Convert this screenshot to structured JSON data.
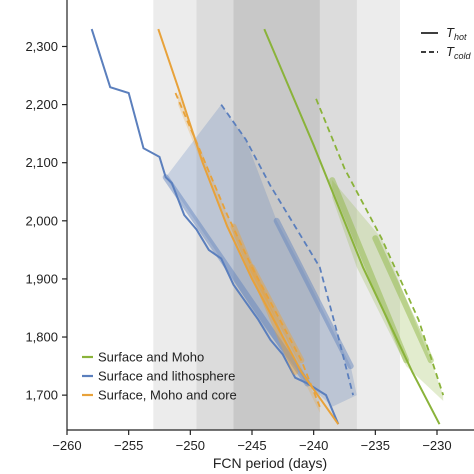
{
  "chart_data": {
    "type": "line",
    "title": "",
    "xlabel": "FCN period (days)",
    "ylabel": "",
    "xlim": [
      -260,
      -227
    ],
    "ylim": [
      1640,
      2380
    ],
    "x_ticks": [
      -260,
      -255,
      -250,
      -245,
      -240,
      -235,
      -230
    ],
    "x_tick_labels": [
      "−260",
      "−255",
      "−250",
      "−245",
      "−240",
      "−235",
      "−230"
    ],
    "y_ticks": [
      1700,
      1800,
      1900,
      2000,
      2100,
      2200,
      2300
    ],
    "y_tick_labels": [
      "1,700",
      "1,800",
      "1,900",
      "2,000",
      "2,100",
      "2,200",
      "2,300"
    ],
    "grid": false,
    "background_bands": [
      {
        "x": [
          -253,
          -233
        ],
        "color": "#ececec"
      },
      {
        "x": [
          -249.5,
          -236.5
        ],
        "color": "#dcdcdc"
      },
      {
        "x": [
          -246.5,
          -239.5
        ],
        "color": "#c8c8c8"
      }
    ],
    "line_style_key": {
      "solid": {
        "label": "T",
        "sub": "hot"
      },
      "dashed": {
        "label": "T",
        "sub": "cold"
      }
    },
    "legend_position": "bottom-left",
    "series": [
      {
        "name": "Surface and Moho",
        "color": "#8ab33a",
        "hot": [
          [
            -244,
            2330
          ],
          [
            -240,
            2130
          ],
          [
            -236,
            1920
          ],
          [
            -232,
            1740
          ],
          [
            -229.8,
            1650
          ]
        ],
        "hot_highlight": [
          [
            -238.5,
            2070
          ],
          [
            -232.5,
            1760
          ]
        ],
        "cold": [
          [
            -239.8,
            2210
          ],
          [
            -237.5,
            2090
          ],
          [
            -234.5,
            1970
          ],
          [
            -231.5,
            1830
          ],
          [
            -229.5,
            1700
          ]
        ],
        "cold_highlight": [
          [
            -235,
            1970
          ],
          [
            -230.5,
            1760
          ]
        ],
        "band_upper": [
          [
            -238.5,
            2070
          ],
          [
            -234.5,
            1970
          ],
          [
            -230.5,
            1760
          ],
          [
            -229.5,
            1700
          ]
        ],
        "band_lower": [
          [
            -238.5,
            2040
          ],
          [
            -236.5,
            1920
          ],
          [
            -232.5,
            1750
          ],
          [
            -229.5,
            1690
          ]
        ]
      },
      {
        "name": "Surface and lithosphere",
        "color": "#5b7fbd",
        "hot": [
          [
            -258,
            2330
          ],
          [
            -256.5,
            2230
          ],
          [
            -255,
            2220
          ],
          [
            -253.8,
            2125
          ],
          [
            -252.5,
            2110
          ],
          [
            -252,
            2075
          ],
          [
            -251.5,
            2065
          ],
          [
            -250.5,
            2010
          ],
          [
            -249.5,
            1985
          ],
          [
            -248.5,
            1950
          ],
          [
            -247.5,
            1935
          ],
          [
            -246.5,
            1890
          ],
          [
            -245.5,
            1860
          ],
          [
            -244.5,
            1830
          ],
          [
            -243.5,
            1795
          ],
          [
            -242.5,
            1770
          ],
          [
            -241.5,
            1730
          ],
          [
            -240.5,
            1720
          ],
          [
            -239,
            1700
          ],
          [
            -238,
            1650
          ]
        ],
        "hot_highlight": [
          [
            -252,
            2075
          ],
          [
            -240.5,
            1720
          ]
        ],
        "cold": [
          [
            -247.5,
            2200
          ],
          [
            -245.5,
            2140
          ],
          [
            -243.5,
            2060
          ],
          [
            -241.5,
            1990
          ],
          [
            -239.5,
            1920
          ],
          [
            -238,
            1800
          ],
          [
            -236.8,
            1700
          ]
        ],
        "cold_highlight": [
          [
            -243,
            2000
          ],
          [
            -237,
            1750
          ]
        ],
        "band_upper": [
          [
            -247.5,
            2200
          ],
          [
            -245.5,
            2140
          ],
          [
            -243,
            2000
          ],
          [
            -241,
            1920
          ],
          [
            -237,
            1750
          ],
          [
            -236.5,
            1700
          ]
        ],
        "band_lower": [
          [
            -252,
            2075
          ],
          [
            -248,
            1950
          ],
          [
            -244.5,
            1830
          ],
          [
            -240.5,
            1720
          ],
          [
            -238.5,
            1680
          ]
        ]
      },
      {
        "name": "Surface, Moho and core",
        "color": "#e8a23a",
        "hot": [
          [
            -252.6,
            2330
          ],
          [
            -251,
            2230
          ],
          [
            -249,
            2100
          ],
          [
            -247,
            1990
          ],
          [
            -245,
            1900
          ],
          [
            -243,
            1820
          ],
          [
            -241,
            1740
          ],
          [
            -238,
            1650
          ]
        ],
        "hot_highlight": [
          [
            -246.5,
            1990
          ],
          [
            -241.5,
            1740
          ]
        ],
        "cold": [
          [
            -251.2,
            2220
          ],
          [
            -249,
            2110
          ],
          [
            -247,
            2010
          ],
          [
            -245,
            1920
          ],
          [
            -243,
            1840
          ],
          [
            -241,
            1760
          ],
          [
            -239.5,
            1680
          ]
        ],
        "cold_highlight": [
          [
            -245,
            1920
          ],
          [
            -241,
            1760
          ]
        ],
        "band_upper": [
          [
            -251,
            2220
          ],
          [
            -247,
            2010
          ],
          [
            -243,
            1840
          ],
          [
            -239.5,
            1680
          ]
        ],
        "band_lower": [
          [
            -251,
            2200
          ],
          [
            -247,
            1990
          ],
          [
            -243,
            1820
          ],
          [
            -239.5,
            1670
          ]
        ]
      }
    ]
  }
}
